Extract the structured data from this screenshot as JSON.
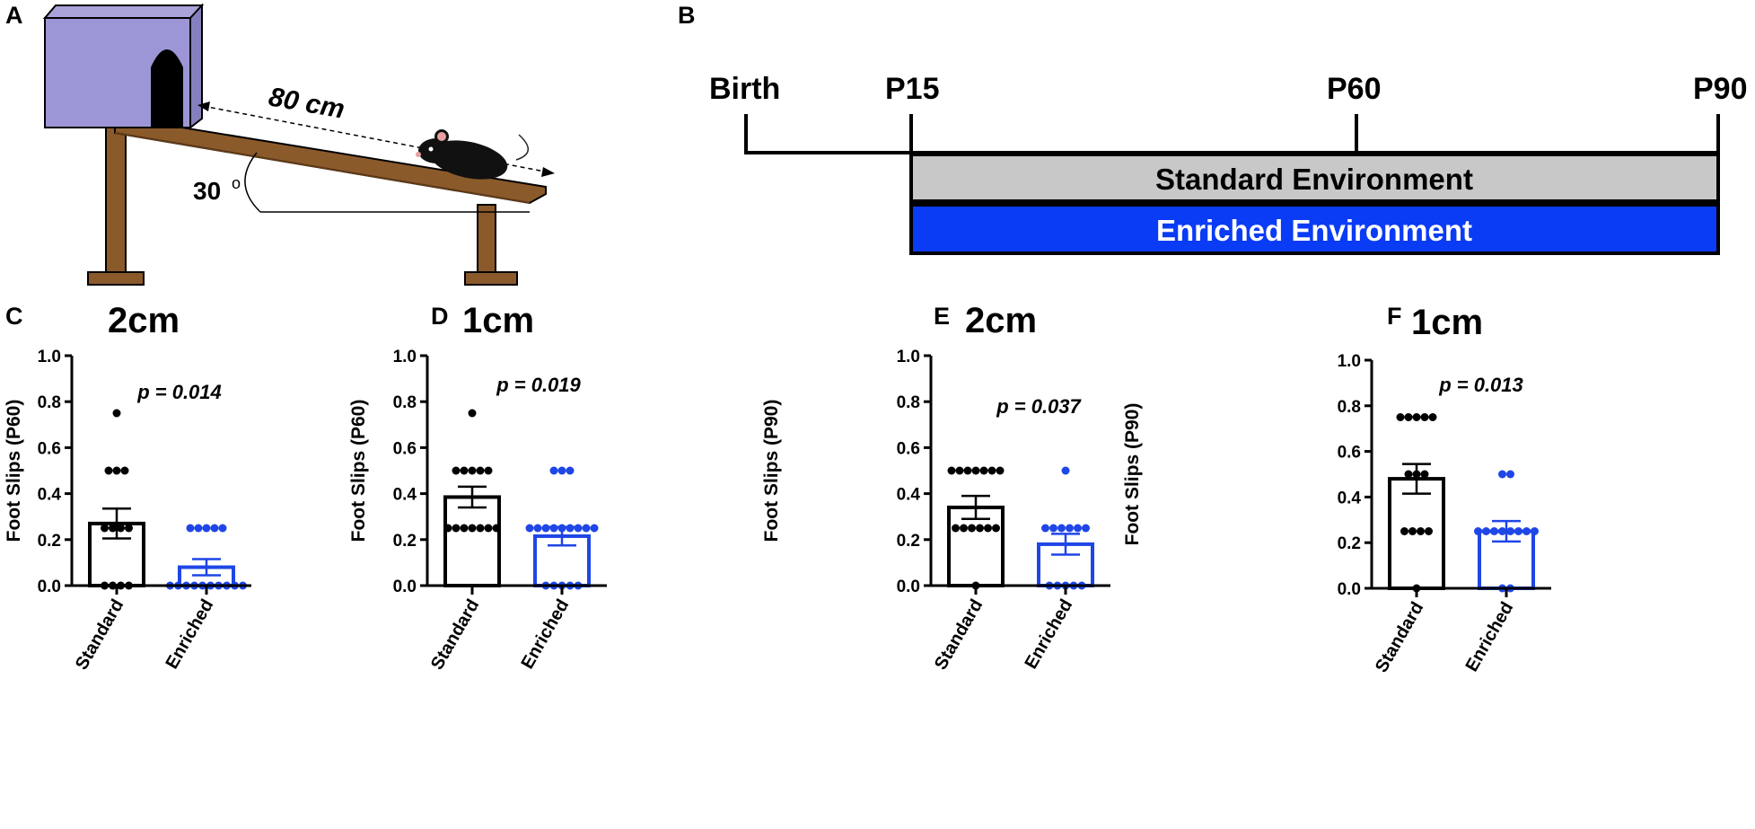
{
  "panel_labels": [
    "A",
    "B",
    "C",
    "D",
    "E",
    "F"
  ],
  "beam": {
    "length_label": "80 cm",
    "angle_value": "30",
    "angle_unit": "o"
  },
  "timeline": {
    "points": [
      {
        "label": "Birth",
        "day": 0
      },
      {
        "label": "P15",
        "day": 15
      },
      {
        "label": "P60",
        "day": 60
      },
      {
        "label": "P90",
        "day": 90
      }
    ],
    "standard_label": "Standard Environment",
    "enriched_label": "Enriched Environment",
    "colors": {
      "standard": "#c8c8c8",
      "enriched": "#0a3cf5"
    }
  },
  "chart_data": [
    {
      "panel": "C",
      "type": "bar",
      "title": "2cm",
      "ylabel": "Foot Slips (P60)",
      "ylim": [
        0,
        1.0
      ],
      "yticks": [
        "0.0",
        "0.2",
        "0.4",
        "0.6",
        "0.8",
        "1.0"
      ],
      "categories": [
        "Standard",
        "Enriched"
      ],
      "p_value": "p = 0.014",
      "series": [
        {
          "name": "Standard",
          "color": "#000000",
          "mean": 0.27,
          "sem": 0.065,
          "points": [
            0.75,
            0.5,
            0.5,
            0.5,
            0.25,
            0.25,
            0.25,
            0.25,
            0,
            0,
            0,
            0
          ]
        },
        {
          "name": "Enriched",
          "color": "#1f46e6",
          "mean": 0.08,
          "sem": 0.035,
          "points": [
            0.25,
            0.25,
            0.25,
            0.25,
            0.25,
            0,
            0,
            0,
            0,
            0,
            0,
            0,
            0,
            0,
            0
          ]
        }
      ]
    },
    {
      "panel": "D",
      "type": "bar",
      "title": "1cm",
      "ylabel": "Foot Slips (P60)",
      "ylim": [
        0,
        1.0
      ],
      "yticks": [
        "0.0",
        "0.2",
        "0.4",
        "0.6",
        "0.8",
        "1.0"
      ],
      "categories": [
        "Standard",
        "Enriched"
      ],
      "p_value": "p = 0.019",
      "series": [
        {
          "name": "Standard",
          "color": "#000000",
          "mean": 0.385,
          "sem": 0.045,
          "points": [
            0.75,
            0.5,
            0.5,
            0.5,
            0.5,
            0.5,
            0.25,
            0.25,
            0.25,
            0.25,
            0.25,
            0.25,
            0.25
          ]
        },
        {
          "name": "Enriched",
          "color": "#1f46e6",
          "mean": 0.215,
          "sem": 0.04,
          "points": [
            0.5,
            0.5,
            0.5,
            0.25,
            0.25,
            0.25,
            0.25,
            0.25,
            0.25,
            0.25,
            0.25,
            0.25,
            0,
            0,
            0,
            0,
            0
          ]
        }
      ]
    },
    {
      "panel": "E",
      "type": "bar",
      "title": "2cm",
      "ylabel": "Foot Slips (P90)",
      "ylim": [
        0,
        1.0
      ],
      "yticks": [
        "0.0",
        "0.2",
        "0.4",
        "0.6",
        "0.8",
        "1.0"
      ],
      "categories": [
        "Standard",
        "Enriched"
      ],
      "p_value": "p = 0.037",
      "series": [
        {
          "name": "Standard",
          "color": "#000000",
          "mean": 0.34,
          "sem": 0.05,
          "points": [
            0.5,
            0.5,
            0.5,
            0.5,
            0.5,
            0.5,
            0.5,
            0.25,
            0.25,
            0.25,
            0.25,
            0.25,
            0.25,
            0
          ]
        },
        {
          "name": "Enriched",
          "color": "#1f46e6",
          "mean": 0.18,
          "sem": 0.045,
          "points": [
            0.5,
            0.25,
            0.25,
            0.25,
            0.25,
            0.25,
            0.25,
            0,
            0,
            0,
            0,
            0
          ]
        }
      ]
    },
    {
      "panel": "F",
      "type": "bar",
      "title": "1cm",
      "ylabel": "Foot Slips (P90)",
      "ylim": [
        0,
        1.0
      ],
      "yticks": [
        "0.0",
        "0.2",
        "0.4",
        "0.6",
        "0.8",
        "1.0"
      ],
      "categories": [
        "Standard",
        "Enriched"
      ],
      "p_value": "p = 0.013",
      "series": [
        {
          "name": "Standard",
          "color": "#000000",
          "mean": 0.48,
          "sem": 0.065,
          "points": [
            0.75,
            0.75,
            0.75,
            0.75,
            0.75,
            0.5,
            0.5,
            0.5,
            0.25,
            0.25,
            0.25,
            0.25,
            0
          ]
        },
        {
          "name": "Enriched",
          "color": "#1f46e6",
          "mean": 0.25,
          "sem": 0.045,
          "points": [
            0.5,
            0.5,
            0.25,
            0.25,
            0.25,
            0.25,
            0.25,
            0.25,
            0.25,
            0.25,
            0,
            0
          ]
        }
      ]
    }
  ]
}
